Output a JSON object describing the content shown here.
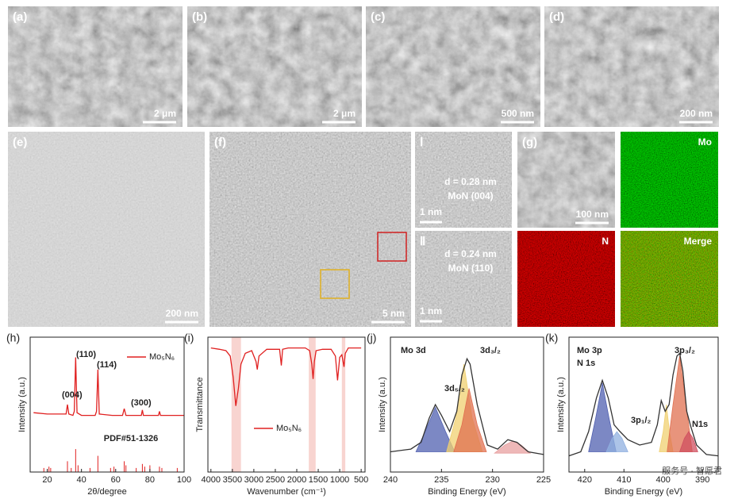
{
  "panels": [
    {
      "label": "(a)",
      "scale": "2 μm"
    },
    {
      "label": "(b)",
      "scale": "2 μm"
    },
    {
      "label": "(c)",
      "scale": "500 nm"
    },
    {
      "label": "(d)",
      "scale": "200 nm"
    },
    {
      "label": "(e)",
      "scale": "200 nm"
    },
    {
      "label": "(f)",
      "scale": "5 nm"
    },
    {
      "label": "(g)",
      "scale": "100 nm"
    }
  ],
  "hrtem": [
    {
      "label": "Ⅰ",
      "d": "d = 0.28 nm",
      "plane": "MoN (004)",
      "scale": "1 nm"
    },
    {
      "label": "Ⅱ",
      "d": "d = 0.24 nm",
      "plane": "MoN (110)",
      "scale": "1 nm"
    }
  ],
  "maps": [
    "Mo",
    "N",
    "Merge"
  ],
  "watermark": "服务号 · 智愿君",
  "chart_data": [
    {
      "type": "line",
      "panel": "(h)",
      "xlabel": "2θ/degree",
      "ylabel": "Intensity (a.u.)",
      "xlim": [
        10,
        100
      ],
      "xticks": [
        20,
        40,
        60,
        80,
        100
      ],
      "ylim": [
        0,
        1
      ],
      "series": [
        {
          "name": "Mo₅N₆",
          "color": "#e02020",
          "type": "line",
          "x": [
            12,
            20,
            30,
            31,
            31.8,
            32.6,
            35,
            35.8,
            36.6,
            37.4,
            40,
            48,
            48.8,
            49.6,
            50.4,
            58,
            64,
            65,
            66,
            70,
            75,
            75.6,
            76.2,
            80,
            85,
            85.6,
            86.2,
            95,
            100
          ],
          "values": [
            0.44,
            0.43,
            0.43,
            0.43,
            0.5,
            0.43,
            0.42,
            0.45,
            0.85,
            0.44,
            0.42,
            0.42,
            0.45,
            0.76,
            0.43,
            0.42,
            0.42,
            0.47,
            0.42,
            0.42,
            0.42,
            0.46,
            0.42,
            0.42,
            0.42,
            0.45,
            0.42,
            0.42,
            0.42
          ]
        },
        {
          "name": "PDF#51-1326",
          "color": "#e02020",
          "type": "sticks",
          "x": [
            18,
            21,
            22,
            31.8,
            34,
            36.6,
            38,
            45,
            49.6,
            57,
            59,
            65,
            66,
            72,
            75.6,
            77,
            80,
            85.6,
            87,
            96
          ],
          "values": [
            0.03,
            0.04,
            0.03,
            0.08,
            0.03,
            0.17,
            0.05,
            0.03,
            0.12,
            0.03,
            0.04,
            0.08,
            0.05,
            0.03,
            0.06,
            0.04,
            0.05,
            0.04,
            0.03,
            0.03
          ]
        }
      ],
      "annotations": [
        "(004)",
        "(110)",
        "(114)",
        "(300)"
      ]
    },
    {
      "type": "line",
      "panel": "(i)",
      "xlabel": "Wavenumber (cm⁻¹)",
      "ylabel": "Transmittance",
      "xlim": [
        4070,
        410
      ],
      "xticks": [
        4000,
        3500,
        3000,
        2500,
        2000,
        1500,
        1000,
        500
      ],
      "ylim": [
        0,
        1
      ],
      "bands": [
        [
          3520,
          3300
        ],
        [
          1720,
          1560
        ],
        [
          950,
          870
        ]
      ],
      "series": [
        {
          "name": "Mo₅N₆",
          "color": "#e02020",
          "type": "line",
          "x": [
            4000,
            3800,
            3650,
            3550,
            3480,
            3420,
            3360,
            3300,
            3200,
            3050,
            2950,
            2920,
            2880,
            2700,
            2400,
            2360,
            2330,
            2200,
            1800,
            1700,
            1650,
            1620,
            1590,
            1550,
            1400,
            1200,
            1100,
            1050,
            1000,
            950,
            900,
            870,
            800,
            600,
            500
          ],
          "values": [
            0.92,
            0.91,
            0.9,
            0.86,
            0.7,
            0.49,
            0.62,
            0.8,
            0.88,
            0.9,
            0.82,
            0.76,
            0.86,
            0.91,
            0.91,
            0.79,
            0.91,
            0.92,
            0.92,
            0.9,
            0.8,
            0.69,
            0.82,
            0.9,
            0.91,
            0.91,
            0.86,
            0.68,
            0.85,
            0.87,
            0.78,
            0.88,
            0.92,
            0.92,
            0.92
          ]
        }
      ],
      "annotations": []
    },
    {
      "type": "line",
      "panel": "(j)",
      "xlabel": "Binding Energy (eV)",
      "ylabel": "Intensity (a.u.)",
      "xlim": [
        240,
        225
      ],
      "xticks": [
        240,
        235,
        230,
        225
      ],
      "ylim": [
        0,
        1
      ],
      "series": [
        {
          "color": "#5060b0",
          "type": "area",
          "x": [
            237.5,
            236.6,
            235.6,
            234.6,
            233.7
          ],
          "values": [
            0.15,
            0.3,
            0.48,
            0.3,
            0.15
          ]
        },
        {
          "color": "#f0d070",
          "type": "area",
          "x": [
            234.5,
            233.6,
            232.8,
            232,
            231
          ],
          "values": [
            0.15,
            0.4,
            0.8,
            0.4,
            0.15
          ]
        },
        {
          "color": "#e07050",
          "type": "area",
          "x": [
            233.8,
            233,
            232.3,
            231.5,
            230.6
          ],
          "values": [
            0.15,
            0.35,
            0.62,
            0.35,
            0.15
          ]
        },
        {
          "color": "#e8a0a0",
          "type": "area",
          "x": [
            229.8,
            228.8,
            228,
            227.2,
            226.3
          ],
          "values": [
            0.14,
            0.2,
            0.23,
            0.2,
            0.14
          ]
        },
        {
          "color": "#333333",
          "type": "line",
          "x": [
            240,
            238,
            237,
            236.2,
            235.6,
            235,
            234.2,
            233.5,
            233,
            232.5,
            232.2,
            231.5,
            230.5,
            229.5,
            228.5,
            227.6,
            226.5,
            225
          ],
          "values": [
            0.15,
            0.17,
            0.22,
            0.4,
            0.5,
            0.42,
            0.3,
            0.45,
            0.72,
            0.84,
            0.8,
            0.5,
            0.2,
            0.17,
            0.24,
            0.22,
            0.15,
            0.13
          ]
        }
      ],
      "annotations": [
        "Mo 3d",
        "3d₅/₂",
        "3d₃/₂"
      ]
    },
    {
      "type": "line",
      "panel": "(k)",
      "xlabel": "Binding Energy (eV)",
      "ylabel": "Intensity (a.u.)",
      "xlim": [
        424,
        386
      ],
      "xticks": [
        420,
        410,
        400,
        390
      ],
      "ylim": [
        0,
        1
      ],
      "series": [
        {
          "color": "#5060b0",
          "type": "area",
          "x": [
            419,
            417.2,
            415.5,
            413.8,
            412
          ],
          "values": [
            0.15,
            0.4,
            0.66,
            0.4,
            0.15
          ]
        },
        {
          "color": "#90b0e0",
          "type": "area",
          "x": [
            414.5,
            413,
            411.8,
            410.5,
            409
          ],
          "values": [
            0.15,
            0.25,
            0.3,
            0.25,
            0.15
          ]
        },
        {
          "color": "#f0d070",
          "type": "area",
          "x": [
            401,
            400,
            399.2,
            398.4,
            397.5
          ],
          "values": [
            0.15,
            0.3,
            0.5,
            0.3,
            0.15
          ]
        },
        {
          "color": "#e07050",
          "type": "area",
          "x": [
            399,
            397.5,
            395.8,
            394.2,
            392.6
          ],
          "values": [
            0.15,
            0.5,
            0.86,
            0.5,
            0.15
          ]
        },
        {
          "color": "#d05060",
          "type": "area",
          "x": [
            395.8,
            394.6,
            393.5,
            392.4,
            391.2
          ],
          "values": [
            0.15,
            0.25,
            0.3,
            0.25,
            0.15
          ]
        },
        {
          "color": "#333333",
          "type": "line",
          "x": [
            424,
            421,
            419,
            417,
            415.5,
            414,
            412.5,
            411,
            409,
            406,
            403,
            401.5,
            400.5,
            399.5,
            398.5,
            397.5,
            396.5,
            395.8,
            395,
            394,
            393,
            391.5,
            389,
            386
          ],
          "values": [
            0.12,
            0.15,
            0.3,
            0.55,
            0.68,
            0.55,
            0.35,
            0.3,
            0.24,
            0.2,
            0.22,
            0.35,
            0.53,
            0.45,
            0.5,
            0.72,
            0.86,
            0.88,
            0.75,
            0.45,
            0.34,
            0.2,
            0.13,
            0.12
          ]
        }
      ],
      "annotations": [
        "Mo 3p",
        "N 1s",
        "3p₁/₂",
        "3p₃/₂",
        "N1s"
      ]
    }
  ]
}
